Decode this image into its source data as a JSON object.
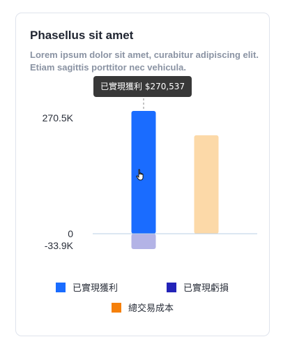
{
  "card": {
    "title": "Phasellus sit amet",
    "subtitle": "Lorem ipsum dolor sit amet, curabitur adipiscing elit. Etiam sagittis porttitor nec vehicula."
  },
  "tooltip": {
    "text": "已實現獲利 $270,537"
  },
  "chart_data": {
    "type": "bar",
    "stacked": true,
    "categories": [
      "",
      ""
    ],
    "series": [
      {
        "name": "已實現獲利",
        "color": "#1a6cff",
        "values": [
          270537,
          0
        ]
      },
      {
        "name": "已實現虧損",
        "color": "#b3b3e6",
        "values": [
          -33900,
          0
        ]
      },
      {
        "name": "總交易成本",
        "color": "#fcd9a8",
        "values": [
          0,
          217000
        ]
      }
    ],
    "y_ticks": [
      "270.5K",
      "0",
      "-33.9K"
    ],
    "ylim": [
      -33900,
      270537
    ],
    "legend": [
      {
        "label": "已實現獲利",
        "color": "#1a6cff"
      },
      {
        "label": "已實現虧損",
        "color": "#2323b8"
      },
      {
        "label": "總交易成本",
        "color": "#f5800b"
      }
    ],
    "legend_position": "bottom",
    "grid": false
  }
}
